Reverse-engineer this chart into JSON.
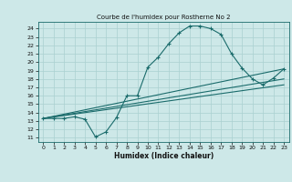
{
  "title": "Courbe de l'humidex pour Rostherne No 2",
  "xlabel": "Humidex (Indice chaleur)",
  "bg_color": "#cde8e8",
  "line_color": "#1a6b6b",
  "grid_color": "#aad0d0",
  "xlim": [
    -0.5,
    23.5
  ],
  "ylim": [
    10.5,
    24.8
  ],
  "xticks": [
    0,
    1,
    2,
    3,
    4,
    5,
    6,
    7,
    8,
    9,
    10,
    11,
    12,
    13,
    14,
    15,
    16,
    17,
    18,
    19,
    20,
    21,
    22,
    23
  ],
  "yticks": [
    11,
    12,
    13,
    14,
    15,
    16,
    17,
    18,
    19,
    20,
    21,
    22,
    23,
    24
  ],
  "line1_x": [
    0,
    1,
    2,
    3,
    4,
    5,
    6,
    7,
    8,
    9,
    10,
    11,
    12,
    13,
    14,
    15,
    16,
    17,
    18,
    19,
    20,
    21,
    22,
    23
  ],
  "line1_y": [
    13.3,
    13.3,
    13.3,
    13.5,
    13.2,
    11.1,
    11.7,
    13.4,
    16.0,
    16.0,
    19.4,
    20.6,
    22.2,
    23.5,
    24.3,
    24.3,
    24.0,
    23.3,
    21.0,
    19.3,
    18.0,
    17.3,
    18.1,
    19.2
  ],
  "line2_x": [
    0,
    23
  ],
  "line2_y": [
    13.3,
    19.2
  ],
  "line3_x": [
    0,
    23
  ],
  "line3_y": [
    13.3,
    17.3
  ],
  "line4_x": [
    0,
    23
  ],
  "line4_y": [
    13.3,
    18.0
  ]
}
